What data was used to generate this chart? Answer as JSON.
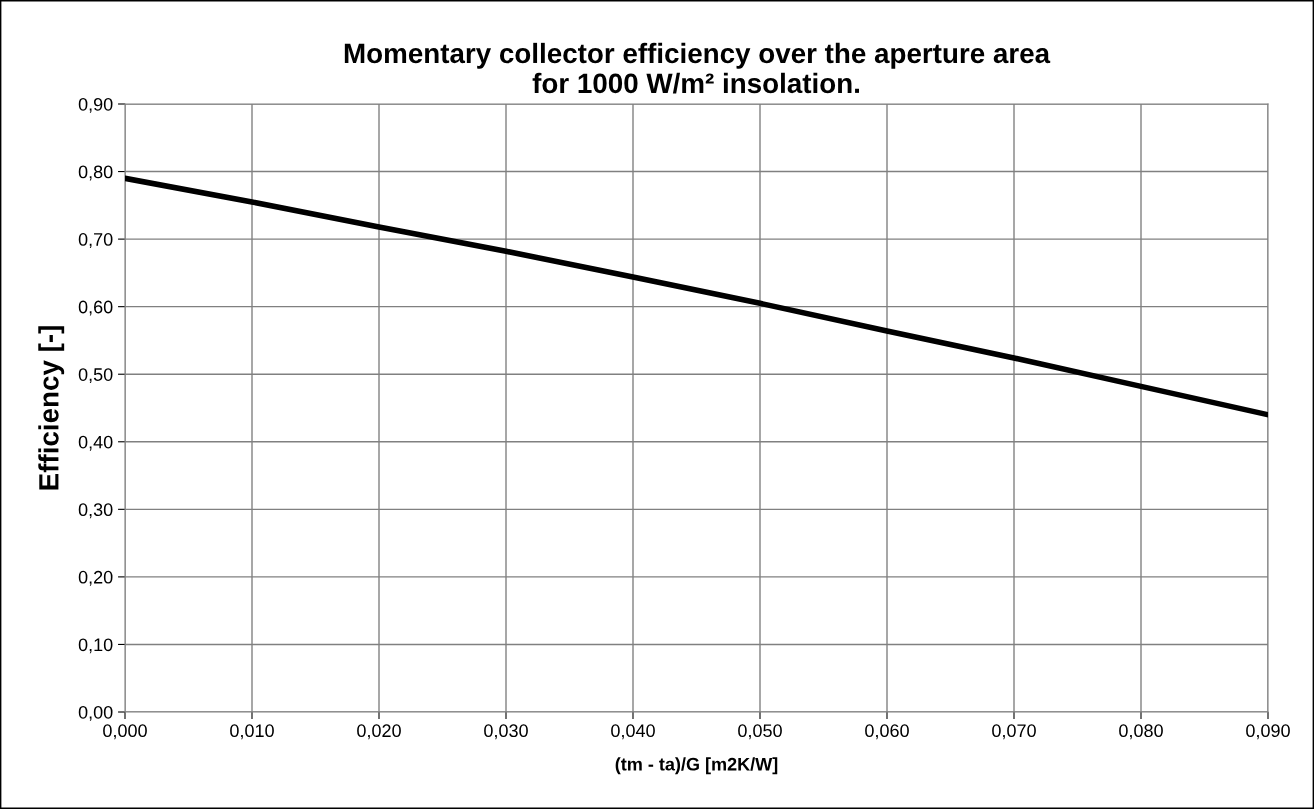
{
  "chart_data": {
    "type": "line",
    "title": "Momentary collector efficiency over the aperture area\nfor 1000 W/m² insolation.",
    "xlabel": "(tm - ta)/G [m2K/W]",
    "ylabel": "Efficiency [-]",
    "x": [
      0.0,
      0.01,
      0.02,
      0.03,
      0.04,
      0.05,
      0.06,
      0.07,
      0.08,
      0.09
    ],
    "series": [
      {
        "color": "#000000",
        "values": [
          0.79,
          0.755,
          0.718,
          0.682,
          0.644,
          0.605,
          0.564,
          0.524,
          0.482,
          0.44
        ]
      }
    ],
    "xlim": [
      0.0,
      0.09
    ],
    "ylim": [
      0.0,
      0.9
    ],
    "xticks": [
      {
        "value": 0.0,
        "label": "0,000"
      },
      {
        "value": 0.01,
        "label": "0,010"
      },
      {
        "value": 0.02,
        "label": "0,020"
      },
      {
        "value": 0.03,
        "label": "0,030"
      },
      {
        "value": 0.04,
        "label": "0,040"
      },
      {
        "value": 0.05,
        "label": "0,050"
      },
      {
        "value": 0.06,
        "label": "0,060"
      },
      {
        "value": 0.07,
        "label": "0,070"
      },
      {
        "value": 0.08,
        "label": "0,080"
      },
      {
        "value": 0.09,
        "label": "0,090"
      }
    ],
    "yticks": [
      {
        "value": 0.0,
        "label": "0,00"
      },
      {
        "value": 0.1,
        "label": "0,10"
      },
      {
        "value": 0.2,
        "label": "0,20"
      },
      {
        "value": 0.3,
        "label": "0,30"
      },
      {
        "value": 0.4,
        "label": "0,40"
      },
      {
        "value": 0.5,
        "label": "0,50"
      },
      {
        "value": 0.6,
        "label": "0,60"
      },
      {
        "value": 0.7,
        "label": "0,70"
      },
      {
        "value": 0.8,
        "label": "0,80"
      },
      {
        "value": 0.9,
        "label": "0,90"
      }
    ],
    "grid": true,
    "marker": "none",
    "line_style": "solid"
  }
}
